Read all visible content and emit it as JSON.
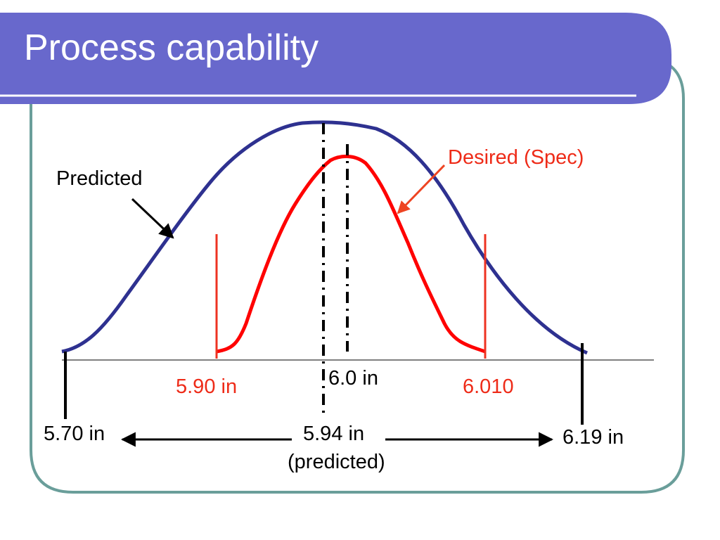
{
  "slide": {
    "title": "Process capability"
  },
  "colors": {
    "title_bar": "#6868cc",
    "frame_border": "#6a9e9a",
    "predicted_curve": "#2e3190",
    "spec_curve": "#ff0000",
    "spec_label": "#ee2b18",
    "baseline": "#808080",
    "markers": "#000000"
  },
  "diagram": {
    "predicted_label": "Predicted",
    "spec_label": "Desired (Spec)",
    "spec_lower": "5.90 in",
    "spec_target": "6.0 in",
    "spec_upper": "6.010",
    "predicted_lower": "5.70 in",
    "predicted_mean": "5.94 in",
    "predicted_mean_note": "(predicted)",
    "predicted_upper": "6.19 in"
  }
}
